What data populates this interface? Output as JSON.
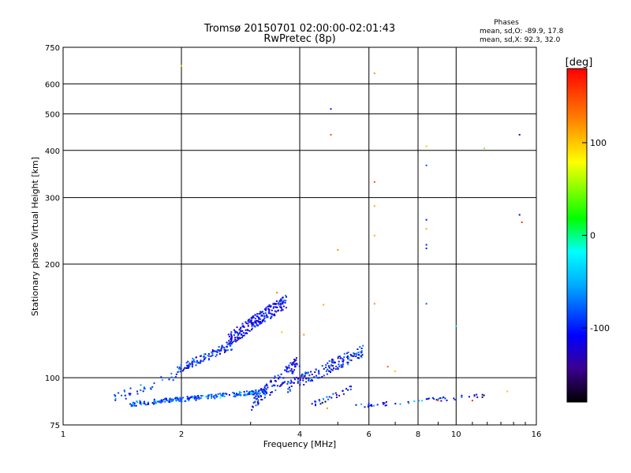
{
  "header": {
    "title_line1": "Tromsø 20150701 02:00:00-02:01:43",
    "title_line2": "RwPretec (8p)"
  },
  "stats": {
    "heading": "Phases",
    "line_o": "mean, sd,O: -89.9, 17.8",
    "line_x": "mean, sd,X: 92.3, 32.0"
  },
  "colorbar": {
    "unit": "[deg]",
    "range": [
      -180,
      180
    ],
    "ticks": [
      {
        "value": 100,
        "label": "100"
      },
      {
        "value": 0,
        "label": "0"
      },
      {
        "value": -100,
        "label": "-100"
      }
    ]
  },
  "chart_data": {
    "type": "scatter",
    "title": "Tromsø 20150701 02:00:00-02:01:43",
    "subtitle": "RwPretec (8p)",
    "xlabel": "Frequency [MHz]",
    "ylabel": "Stationary phase Virtual Height [km]",
    "xscale": "log",
    "yscale": "log",
    "xlim": [
      1,
      16
    ],
    "ylim": [
      75,
      750
    ],
    "grid": true,
    "x_ticks": [
      1,
      2,
      4,
      6,
      8,
      10,
      16
    ],
    "y_ticks": [
      75,
      100,
      200,
      300,
      400,
      500,
      600,
      750
    ],
    "points": [
      {
        "f": 2.0,
        "h": 670,
        "phase": 100
      },
      {
        "f": 4.8,
        "h": 515,
        "phase": -100
      },
      {
        "f": 4.8,
        "h": 440,
        "phase": 150
      },
      {
        "f": 6.2,
        "h": 640,
        "phase": 120
      },
      {
        "f": 6.2,
        "h": 330,
        "phase": 150
      },
      {
        "f": 6.2,
        "h": 285,
        "phase": 110
      },
      {
        "f": 6.2,
        "h": 238,
        "phase": 110
      },
      {
        "f": 6.2,
        "h": 157,
        "phase": 120
      },
      {
        "f": 8.4,
        "h": 410,
        "phase": 100
      },
      {
        "f": 8.4,
        "h": 365,
        "phase": -80
      },
      {
        "f": 8.4,
        "h": 262,
        "phase": -100
      },
      {
        "f": 8.4,
        "h": 248,
        "phase": 110
      },
      {
        "f": 8.4,
        "h": 225,
        "phase": -100
      },
      {
        "f": 8.4,
        "h": 220,
        "phase": -100
      },
      {
        "f": 8.4,
        "h": 157,
        "phase": -80
      },
      {
        "f": 5.0,
        "h": 218,
        "phase": 120
      },
      {
        "f": 10.0,
        "h": 137,
        "phase": -30
      },
      {
        "f": 11.8,
        "h": 405,
        "phase": 50
      },
      {
        "f": 14.5,
        "h": 440,
        "phase": -130
      },
      {
        "f": 14.5,
        "h": 270,
        "phase": -110
      },
      {
        "f": 14.7,
        "h": 258,
        "phase": 160
      },
      {
        "f": 13.5,
        "h": 92,
        "phase": 100
      },
      {
        "f": 11.0,
        "h": 87,
        "phase": 160
      },
      {
        "f": 9.0,
        "h": 87,
        "phase": 140
      },
      {
        "f": 4.6,
        "h": 156,
        "phase": 110
      },
      {
        "f": 4.1,
        "h": 130,
        "phase": 120
      },
      {
        "f": 3.5,
        "h": 168,
        "phase": 130
      },
      {
        "f": 3.6,
        "h": 132,
        "phase": 100
      },
      {
        "f": 4.7,
        "h": 83,
        "phase": 120
      },
      {
        "f": 6.7,
        "h": 107,
        "phase": 140
      },
      {
        "f": 7.0,
        "h": 104,
        "phase": 100
      }
    ],
    "clusters": [
      {
        "f_range": [
          1.45,
          3.3
        ],
        "h_range": [
          85,
          92
        ],
        "n": 240,
        "phase_mean": -80,
        "phase_sd": 25,
        "seed": 11
      },
      {
        "f_range": [
          1.35,
          2.0
        ],
        "h_range": [
          88,
          103
        ],
        "n": 35,
        "phase_mean": -90,
        "phase_sd": 20,
        "seed": 12
      },
      {
        "f_range": [
          1.95,
          2.7
        ],
        "h_range": [
          105,
          122
        ],
        "n": 110,
        "phase_mean": -95,
        "phase_sd": 20,
        "seed": 13
      },
      {
        "f_range": [
          2.6,
          3.7
        ],
        "h_range": [
          125,
          160
        ],
        "n": 220,
        "phase_mean": -110,
        "phase_sd": 15,
        "seed": 14
      },
      {
        "f_range": [
          3.0,
          4.0
        ],
        "h_range": [
          85,
          110
        ],
        "n": 110,
        "phase_mean": -105,
        "phase_sd": 20,
        "seed": 15
      },
      {
        "f_range": [
          3.7,
          5.8
        ],
        "h_range": [
          94,
          118
        ],
        "n": 160,
        "phase_mean": -100,
        "phase_sd": 25,
        "seed": 16
      },
      {
        "f_range": [
          4.2,
          5.5
        ],
        "h_range": [
          84,
          94
        ],
        "n": 30,
        "phase_mean": -100,
        "phase_sd": 30,
        "seed": 17
      },
      {
        "f_range": [
          5.5,
          12.0
        ],
        "h_range": [
          84,
          90
        ],
        "n": 50,
        "phase_mean": -100,
        "phase_sd": 30,
        "seed": 18
      }
    ]
  }
}
